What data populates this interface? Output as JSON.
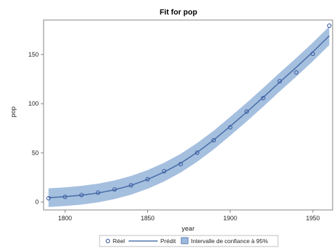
{
  "chart_data": {
    "type": "line",
    "title": "Fit for pop",
    "xlabel": "year",
    "ylabel": "pop",
    "xlim": [
      1787,
      1962
    ],
    "ylim": [
      -8,
      185
    ],
    "xticks": [
      1800,
      1850,
      1900,
      1950
    ],
    "yticks": [
      0,
      50,
      100,
      150
    ],
    "observed": {
      "name": "Réel",
      "x": [
        1790,
        1800,
        1810,
        1820,
        1830,
        1840,
        1850,
        1860,
        1870,
        1880,
        1890,
        1900,
        1910,
        1920,
        1930,
        1940,
        1950,
        1960
      ],
      "y": [
        3.9,
        5.3,
        7.2,
        9.6,
        12.9,
        17.1,
        23.2,
        31.4,
        38.6,
        50.2,
        62.9,
        76.0,
        92.0,
        105.7,
        122.8,
        131.7,
        150.7,
        179.3
      ]
    },
    "predicted": {
      "name": "Prédit",
      "x": [
        1790,
        1800,
        1810,
        1820,
        1830,
        1840,
        1850,
        1860,
        1870,
        1880,
        1890,
        1900,
        1910,
        1920,
        1930,
        1940,
        1950,
        1960
      ],
      "y": [
        4.5,
        5.5,
        7.0,
        9.2,
        12.5,
        17.0,
        23.0,
        30.5,
        39.5,
        50.5,
        63.0,
        77.0,
        91.5,
        106.5,
        122.0,
        137.0,
        152.5,
        169.0
      ]
    },
    "band": {
      "name": "Intervalle de confiance à 95%",
      "halfwidth": 9.5
    },
    "legend": "bottom",
    "colors": {
      "line": "#4a6fa8",
      "marker": "#3b5ba0",
      "band": "#9bb8dc",
      "frame": "#808080"
    }
  }
}
